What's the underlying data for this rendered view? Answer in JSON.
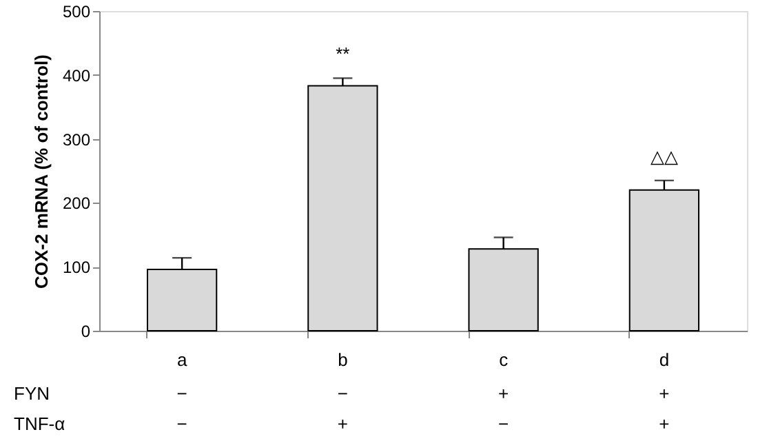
{
  "chart_data": {
    "type": "bar",
    "ylabel": "COX-2 mRNA (% of control)",
    "categories": [
      "a",
      "b",
      "c",
      "d"
    ],
    "values": [
      96,
      383,
      128,
      220
    ],
    "color": "#d9d9d9",
    "errors": [
      [
        96,
        114
      ],
      [
        383,
        395
      ],
      [
        128,
        146
      ],
      [
        220,
        235
      ]
    ],
    "ylim": [
      0,
      500
    ],
    "yticks": [
      0,
      100,
      200,
      300,
      400,
      500
    ],
    "grid": false,
    "annotations": [
      {
        "text": "**",
        "x": "b",
        "y": 395
      },
      {
        "text": "△△",
        "x": "d",
        "y": 235
      },
      "FYN",
      "−",
      "−",
      "+",
      "+",
      "TNF-α",
      "−",
      "+",
      "−",
      "+"
    ]
  }
}
